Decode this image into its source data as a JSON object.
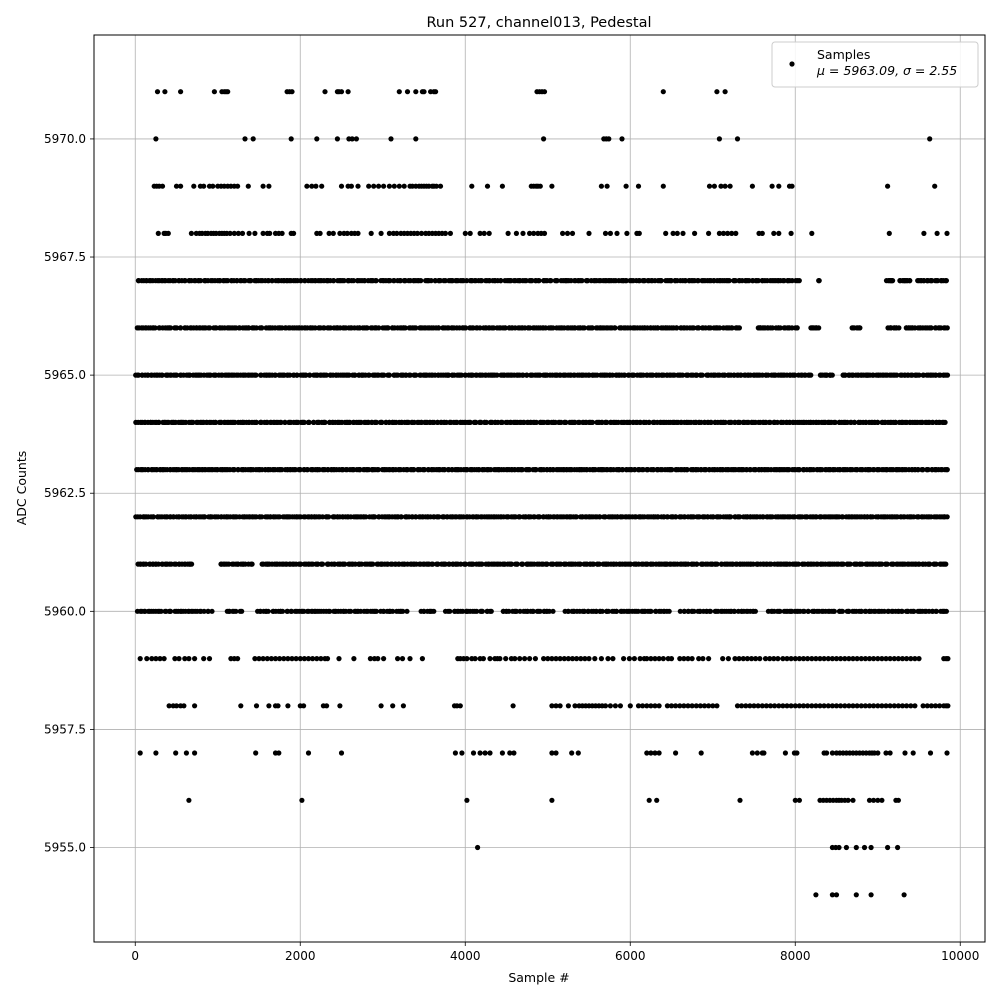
{
  "chart_data": {
    "type": "scatter",
    "title": "Run 527, channel013, Pedestal",
    "xlabel": "Sample #",
    "ylabel": "ADC Counts",
    "xlim": [
      -500,
      10300
    ],
    "ylim": [
      5953.0,
      5972.2
    ],
    "xticks": [
      0,
      2000,
      4000,
      6000,
      8000,
      10000
    ],
    "xtick_labels": [
      "0",
      "2000",
      "4000",
      "6000",
      "8000",
      "10000"
    ],
    "yticks": [
      5955.0,
      5957.5,
      5960.0,
      5962.5,
      5965.0,
      5967.5,
      5970.0
    ],
    "ytick_labels": [
      "5955.0",
      "5957.5",
      "5960.0",
      "5962.5",
      "5965.0",
      "5967.5",
      "5970.0"
    ],
    "grid": true,
    "legend_position": "top-right",
    "marker_color": "#000000",
    "series": [
      {
        "name": "Samples",
        "stats_label": "μ = 5963.09, σ = 2.55",
        "levels": [
          {
            "y": 5971,
            "x": [
              270,
              360,
              550,
              960,
              1050,
              1080,
              1100,
              1120,
              1840,
              1870,
              1900,
              2300,
              2450,
              2470,
              2500,
              2580,
              3200,
              3300,
              3400,
              3480,
              3500,
              3580,
              3620,
              3640,
              4870,
              4900,
              4930,
              4960,
              6400,
              7050,
              7150
            ]
          },
          {
            "y": 5970,
            "x": [
              250,
              1330,
              1430,
              1890,
              2200,
              2450,
              2590,
              2630,
              2680,
              3100,
              3400,
              4950,
              5680,
              5710,
              5740,
              5900,
              7080,
              7300,
              9630
            ]
          },
          {
            "y": 5969,
            "x": [
              230,
              260,
              290,
              330,
              500,
              550,
              710,
              790,
              830,
              900,
              940,
              1000,
              1040,
              1080,
              1120,
              1160,
              1200,
              1240,
              1370,
              1550,
              1620,
              2080,
              2140,
              2190,
              2260,
              2500,
              2580,
              2620,
              2700,
              2830,
              2890,
              2950,
              3010,
              3080,
              3140,
              3200,
              3260,
              3330,
              3360,
              3400,
              3440,
              3470,
              3500,
              3530,
              3560,
              3600,
              3620,
              3650,
              3700,
              4080,
              4270,
              4450,
              4800,
              4830,
              4860,
              4880,
              4910,
              5050,
              5650,
              5720,
              5950,
              6100,
              6400,
              6960,
              7020,
              7100,
              7150,
              7210,
              7480,
              7720,
              7800,
              7930,
              7960,
              9120,
              9690
            ]
          },
          {
            "y": 5968,
            "x": [
              280,
              350,
              370,
              400,
              680,
              740,
              780,
              810,
              850,
              880,
              920,
              950,
              980,
              1020,
              1050,
              1080,
              1110,
              1150,
              1200,
              1250,
              1300,
              1380,
              1450,
              1550,
              1600,
              1630,
              1700,
              1740,
              1780,
              1890,
              1920,
              2200,
              2240,
              2350,
              2400,
              2480,
              2530,
              2570,
              2620,
              2660,
              2700,
              2860,
              2980,
              3080,
              3130,
              3170,
              3220,
              3260,
              3300,
              3340,
              3380,
              3420,
              3470,
              3520,
              3560,
              3600,
              3640,
              3680,
              3720,
              3760,
              3820,
              4000,
              4060,
              4180,
              4230,
              4290,
              4520,
              4620,
              4700,
              4780,
              4830,
              4880,
              4920,
              4960,
              5180,
              5240,
              5300,
              5500,
              5700,
              5760,
              5840,
              5960,
              6080,
              6110,
              6430,
              6520,
              6570,
              6640,
              6780,
              6950,
              7080,
              7130,
              7180,
              7230,
              7280,
              7560,
              7600,
              7740,
              7800,
              7950,
              8200,
              9140,
              9560,
              9720,
              9840
            ]
          },
          {
            "y": 5967,
            "x_range": [
              0,
              9850
            ],
            "count": 420,
            "gaps": [
              [
                8050,
                8280
              ],
              [
                8320,
                9100
              ],
              [
                9200,
                9250
              ],
              [
                9400,
                9480
              ]
            ],
            "extra": [
              8290,
              9130,
              9160,
              9180,
              9300,
              9330,
              9350,
              9500,
              9560,
              9600,
              9650
            ]
          },
          {
            "y": 5966,
            "x_range": [
              0,
              9850
            ],
            "count": 420,
            "gaps": [
              [
                7330,
                7520
              ],
              [
                8050,
                8180
              ],
              [
                8290,
                8680
              ],
              [
                8800,
                9100
              ],
              [
                9270,
                9330
              ]
            ],
            "extra": [
              7560,
              7580,
              7620,
              8200,
              8240,
              8260,
              8700,
              8760,
              9150,
              9200,
              9380,
              9420
            ]
          },
          {
            "y": 5965,
            "x_range": [
              0,
              9850
            ],
            "count": 440,
            "gaps": [
              [
                8200,
                8300
              ],
              [
                8450,
                8550
              ]
            ],
            "extra": [
              8330,
              8380,
              8420,
              8580,
              8650,
              8700,
              8830,
              8880
            ]
          },
          {
            "y": 5964,
            "x_range": [
              0,
              9850
            ],
            "count": 460,
            "gaps": [],
            "extra": []
          },
          {
            "y": 5963,
            "x_range": [
              0,
              9850
            ],
            "count": 480,
            "gaps": [],
            "extra": []
          },
          {
            "y": 5962,
            "x_range": [
              0,
              9850
            ],
            "count": 460,
            "gaps": [],
            "extra": []
          },
          {
            "y": 5961,
            "x_range": [
              0,
              9850
            ],
            "count": 440,
            "gaps": [
              [
                700,
                1020
              ],
              [
                1420,
                1500
              ]
            ],
            "extra": []
          },
          {
            "y": 5960,
            "x_range": [
              0,
              9850
            ],
            "count": 400,
            "gaps": [
              [
                930,
                1100
              ],
              [
                1300,
                1450
              ],
              [
                3300,
                3450
              ],
              [
                3640,
                3750
              ],
              [
                4350,
                4450
              ],
              [
                5080,
                5180
              ],
              [
                6500,
                6600
              ],
              [
                7550,
                7650
              ]
            ],
            "extra": []
          },
          {
            "y": 5959,
            "x": [
              60,
              140,
              200,
              250,
              300,
              350,
              480,
              530,
              600,
              650,
              720,
              830,
              900,
              1160,
              1200,
              1240,
              1450,
              1500,
              1550,
              1600,
              1650,
              1700,
              1750,
              1800,
              1850,
              1900,
              1950,
              2000,
              2050,
              2100,
              2150,
              2200,
              2250,
              2300,
              2330,
              2470,
              2650,
              2850,
              2900,
              2940,
              3010,
              3180,
              3240,
              3330,
              3480,
              3910,
              3940,
              3980,
              4020,
              4080,
              4120,
              4180,
              4220,
              4300,
              4360,
              4390,
              4420,
              4490,
              4560,
              4600,
              4660,
              4720,
              4780,
              4850,
              4950,
              5000,
              5050,
              5100,
              5150,
              5200,
              5250,
              5300,
              5350,
              5400,
              5450,
              5500,
              5570,
              5650,
              5730,
              5790,
              5920,
              5990,
              6050,
              6120,
              6170,
              6200,
              6250,
              6300,
              6350,
              6400,
              6460,
              6500,
              6600,
              6650,
              6700,
              6750,
              6830,
              6880,
              6950,
              7120,
              7190,
              7270,
              7320,
              7370,
              7420,
              7470,
              7520,
              7570,
              7640,
              7690,
              7740,
              7790,
              7850,
              7900,
              7950,
              8000,
              8050,
              8100,
              8150,
              8200,
              8250,
              8300,
              8350,
              8400,
              8450,
              8500,
              8550,
              8600,
              8650,
              8700,
              8750,
              8800,
              8850,
              8900,
              8950,
              9000,
              9050,
              9100,
              9150,
              9200,
              9250,
              9300,
              9350,
              9400,
              9450,
              9500,
              9800,
              9830,
              9850
            ]
          },
          {
            "y": 5958,
            "x": [
              410,
              460,
              500,
              550,
              590,
              720,
              1280,
              1470,
              1620,
              1700,
              1730,
              1850,
              2000,
              2040,
              2280,
              2320,
              2480,
              2980,
              3120,
              3250,
              3870,
              3900,
              3940,
              4580,
              5050,
              5100,
              5150,
              5250,
              5330,
              5380,
              5420,
              5460,
              5500,
              5540,
              5580,
              5620,
              5660,
              5700,
              5760,
              5820,
              5880,
              6000,
              6100,
              6150,
              6200,
              6250,
              6300,
              6350,
              6450,
              6500,
              6550,
              6600,
              6650,
              6700,
              6750,
              6800,
              6850,
              6900,
              6950,
              7000,
              7050,
              7300,
              7350,
              7400,
              7450,
              7500,
              7550,
              7600,
              7650,
              7700,
              7750,
              7800,
              7850,
              7900,
              7950,
              8000,
              8050,
              8100,
              8150,
              8200,
              8250,
              8300,
              8350,
              8400,
              8450,
              8500,
              8550,
              8600,
              8650,
              8700,
              8750,
              8800,
              8850,
              8900,
              8950,
              9000,
              9050,
              9100,
              9150,
              9200,
              9250,
              9300,
              9350,
              9400,
              9450,
              9550,
              9600,
              9650,
              9700,
              9750,
              9800,
              9830,
              9850
            ]
          },
          {
            "y": 5957,
            "x": [
              60,
              250,
              490,
              620,
              720,
              1460,
              1700,
              1740,
              2100,
              2500,
              3880,
              3960,
              4100,
              4180,
              4240,
              4300,
              4450,
              4540,
              4590,
              5050,
              5100,
              5290,
              5370,
              6200,
              6250,
              6300,
              6350,
              6550,
              6860,
              7480,
              7540,
              7600,
              7620,
              7880,
              7990,
              8020,
              8350,
              8380,
              8450,
              8500,
              8540,
              8580,
              8620,
              8660,
              8700,
              8740,
              8780,
              8820,
              8860,
              8900,
              8930,
              8960,
              9000,
              9100,
              9150,
              9330,
              9430,
              9640,
              9840
            ]
          },
          {
            "y": 5956,
            "x": [
              650,
              2020,
              4020,
              5050,
              6230,
              6320,
              7330,
              8000,
              8050,
              8300,
              8340,
              8380,
              8420,
              8460,
              8500,
              8530,
              8560,
              8600,
              8640,
              8700,
              8900,
              8950,
              9000,
              9050,
              9220,
              9250
            ]
          },
          {
            "y": 5955,
            "x": [
              4150,
              8450,
              8490,
              8530,
              8620,
              8740,
              8840,
              8920,
              9120,
              9240
            ]
          },
          {
            "y": 5954,
            "x": [
              8250,
              8450,
              8500,
              8740,
              8920,
              9320
            ]
          }
        ]
      }
    ]
  }
}
